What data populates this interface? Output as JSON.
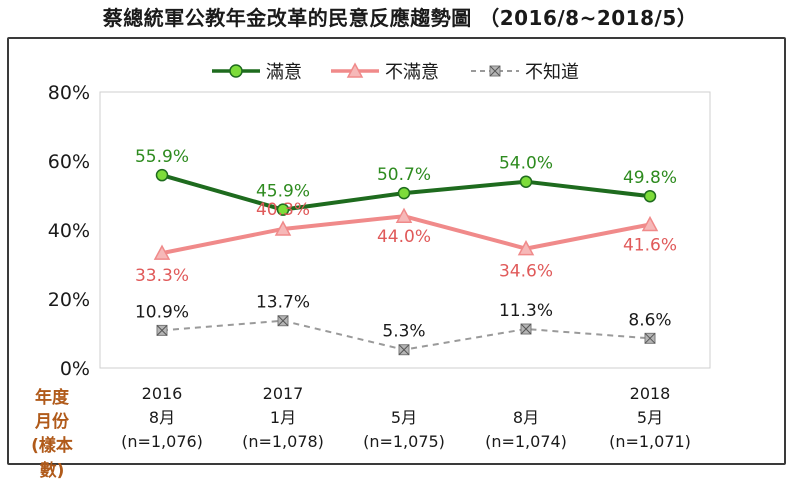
{
  "chart_data": {
    "type": "line",
    "title": "蔡總統軍公教年金改革的民意反應趨勢圖 （2016/8~2018/5）",
    "ylim": [
      0,
      80
    ],
    "yticks": [
      "0%",
      "20%",
      "40%",
      "60%",
      "80%"
    ],
    "categories": [
      [
        "2016",
        "8月",
        "(n=1,076)"
      ],
      [
        "2017",
        "1月",
        "(n=1,078)"
      ],
      [
        "",
        "5月",
        "(n=1,075)"
      ],
      [
        "",
        "8月",
        "(n=1,074)"
      ],
      [
        "2018",
        "5月",
        "(n=1,071)"
      ]
    ],
    "row_labels": [
      "年度",
      "月份",
      "(樣本數)"
    ],
    "legend_position": "top",
    "grid": false,
    "series": [
      {
        "name": "滿意",
        "values": [
          55.9,
          45.9,
          50.7,
          54.0,
          49.8
        ],
        "labels": [
          "55.9%",
          "45.9%",
          "50.7%",
          "54.0%",
          "49.8%"
        ],
        "color": "#1e6b1e",
        "marker_fill": "#7ddc3a",
        "marker": "circle",
        "dash": false
      },
      {
        "name": "不滿意",
        "values": [
          33.3,
          40.3,
          44.0,
          34.6,
          41.6
        ],
        "labels": [
          "33.3%",
          "40.3%",
          "44.0%",
          "34.6%",
          "41.6%"
        ],
        "color": "#f08a8a",
        "marker_fill": "#f6b8b8",
        "marker": "triangle",
        "dash": false
      },
      {
        "name": "不知道",
        "values": [
          10.9,
          13.7,
          5.3,
          11.3,
          8.6
        ],
        "labels": [
          "10.9%",
          "13.7%",
          "5.3%",
          "11.3%",
          "8.6%"
        ],
        "color": "#9a9a9a",
        "marker_fill": "#b5b5b5",
        "marker": "x-square",
        "dash": true
      }
    ]
  }
}
